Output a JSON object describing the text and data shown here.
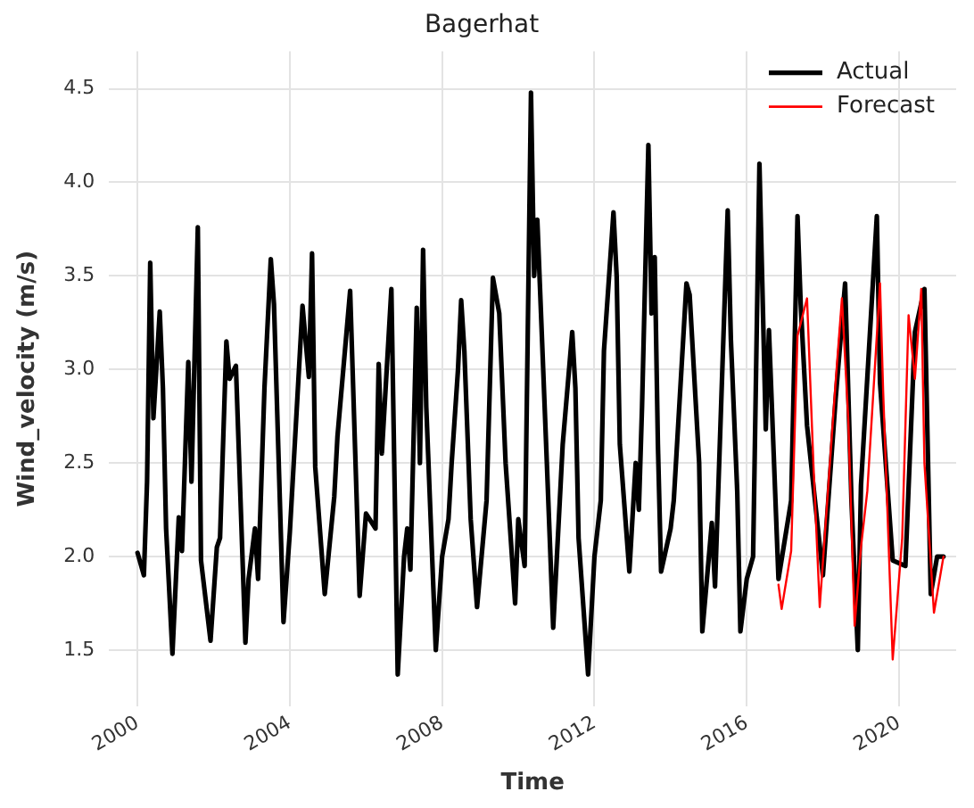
{
  "chart_data": {
    "type": "line",
    "title": "Bagerhat",
    "xlabel": "Time",
    "ylabel": "Wind_velocity (m/s)",
    "xlim": [
      "1999-04",
      "2021-07"
    ],
    "xticks": [
      {
        "value": "2000",
        "label": "2000"
      },
      {
        "value": "2004",
        "label": "2004"
      },
      {
        "value": "2008",
        "label": "2008"
      },
      {
        "value": "2012",
        "label": "2012"
      },
      {
        "value": "2016",
        "label": "2016"
      },
      {
        "value": "2020",
        "label": "2020"
      }
    ],
    "ylim": [
      1.2,
      4.7
    ],
    "yticks": [
      1.5,
      {
        "value": 2,
        "label": "2.0"
      },
      2.5,
      {
        "value": 3,
        "label": "3.0"
      },
      3.5,
      {
        "value": 4,
        "label": "4.0"
      },
      4.5
    ],
    "grid": true,
    "legend": "top right",
    "marker": "none",
    "line_style": "solid",
    "series": [
      {
        "name": "Actual",
        "color": "#000000",
        "x": [
          "2000-01",
          "2000-03",
          "2000-04",
          "2000-05",
          "2000-06",
          "2000-08",
          "2000-09",
          "2000-10",
          "2000-12",
          "2001-02",
          "2001-03",
          "2001-05",
          "2001-06",
          "2001-08",
          "2001-09",
          "2001-12",
          "2002-02",
          "2002-03",
          "2002-05",
          "2002-06",
          "2002-08",
          "2002-11",
          "2002-12",
          "2003-02",
          "2003-03",
          "2003-05",
          "2003-07",
          "2003-08",
          "2003-11",
          "2004-01",
          "2004-05",
          "2004-07",
          "2004-08",
          "2004-09",
          "2004-12",
          "2005-03",
          "2005-04",
          "2005-08",
          "2005-10",
          "2005-11",
          "2006-01",
          "2006-04",
          "2006-05",
          "2006-06",
          "2006-09",
          "2006-11",
          "2007-01",
          "2007-02",
          "2007-03",
          "2007-05",
          "2007-06",
          "2007-07",
          "2007-08",
          "2007-11",
          "2008-01",
          "2008-03",
          "2008-04",
          "2008-06",
          "2008-07",
          "2008-08",
          "2008-10",
          "2008-12",
          "2009-03",
          "2009-05",
          "2009-07",
          "2009-09",
          "2009-12",
          "2010-01",
          "2010-03",
          "2010-05",
          "2010-06",
          "2010-07",
          "2010-10",
          "2010-12",
          "2011-03",
          "2011-06",
          "2011-07",
          "2011-08",
          "2011-11",
          "2012-01",
          "2012-03",
          "2012-04",
          "2012-07",
          "2012-08",
          "2012-09",
          "2012-12",
          "2013-02",
          "2013-03",
          "2013-04",
          "2013-06",
          "2013-07",
          "2013-08",
          "2013-09",
          "2013-10",
          "2014-01",
          "2014-02",
          "2014-06",
          "2014-07",
          "2014-10",
          "2014-11",
          "2015-02",
          "2015-03",
          "2015-07",
          "2015-08",
          "2015-10",
          "2015-11",
          "2016-01",
          "2016-03",
          "2016-05",
          "2016-07",
          "2016-08",
          "2016-11",
          "2017-03",
          "2017-05",
          "2017-06",
          "2017-08",
          "2018-01",
          "2018-05",
          "2018-08",
          "2018-10",
          "2018-12",
          "2019-01",
          "2019-06",
          "2019-07",
          "2019-11",
          "2020-03",
          "2020-06",
          "2020-09",
          "2020-11",
          "2021-01",
          "2021-03"
        ],
        "values": [
          2.02,
          1.9,
          2.4,
          3.57,
          2.74,
          3.31,
          2.9,
          2.15,
          1.48,
          2.21,
          2.03,
          3.04,
          2.4,
          3.76,
          1.98,
          1.55,
          2.05,
          2.1,
          3.15,
          2.95,
          3.02,
          1.54,
          1.88,
          2.15,
          1.88,
          2.9,
          3.59,
          3.35,
          1.65,
          2.13,
          3.34,
          2.96,
          3.62,
          2.48,
          1.8,
          2.32,
          2.64,
          3.42,
          2.34,
          1.79,
          2.23,
          2.15,
          3.03,
          2.55,
          3.43,
          1.37,
          2.0,
          2.15,
          1.93,
          3.33,
          2.5,
          3.64,
          2.8,
          1.5,
          2.0,
          2.2,
          2.5,
          3.0,
          3.37,
          3.1,
          2.2,
          1.73,
          2.3,
          3.49,
          3.3,
          2.5,
          1.75,
          2.2,
          1.95,
          4.48,
          3.5,
          3.8,
          2.5,
          1.62,
          2.6,
          3.2,
          2.9,
          2.1,
          1.37,
          2.0,
          2.3,
          3.1,
          3.84,
          3.5,
          2.6,
          1.92,
          2.5,
          2.25,
          2.8,
          4.2,
          3.3,
          3.6,
          2.6,
          1.92,
          2.15,
          2.3,
          3.46,
          3.4,
          2.5,
          1.6,
          2.18,
          1.84,
          3.85,
          3.16,
          2.35,
          1.6,
          1.88,
          2.0,
          4.1,
          2.68,
          3.21,
          1.88,
          2.3,
          3.82,
          3.35,
          2.7,
          1.9,
          2.84,
          3.46,
          2.3,
          1.5,
          2.38,
          3.82,
          2.93,
          1.98,
          1.95,
          3.2,
          3.43,
          1.8,
          2.0,
          2.0
        ]
      },
      {
        "name": "Forecast",
        "color": "#ff0000",
        "x": [
          "2016-11",
          "2016-12",
          "2017-03",
          "2017-05",
          "2017-08",
          "2017-10",
          "2017-12",
          "2018-05",
          "2018-07",
          "2018-09",
          "2018-11",
          "2019-01",
          "2019-03",
          "2019-07",
          "2019-08",
          "2019-11",
          "2020-02",
          "2020-04",
          "2020-06",
          "2020-08",
          "2020-09",
          "2020-12",
          "2021-03"
        ],
        "values": [
          1.85,
          1.72,
          2.03,
          3.18,
          3.38,
          2.5,
          1.73,
          2.93,
          3.38,
          2.73,
          1.63,
          2.05,
          2.35,
          3.46,
          2.88,
          1.45,
          2.1,
          3.29,
          2.95,
          3.43,
          2.5,
          1.7,
          2.0
        ]
      }
    ]
  }
}
